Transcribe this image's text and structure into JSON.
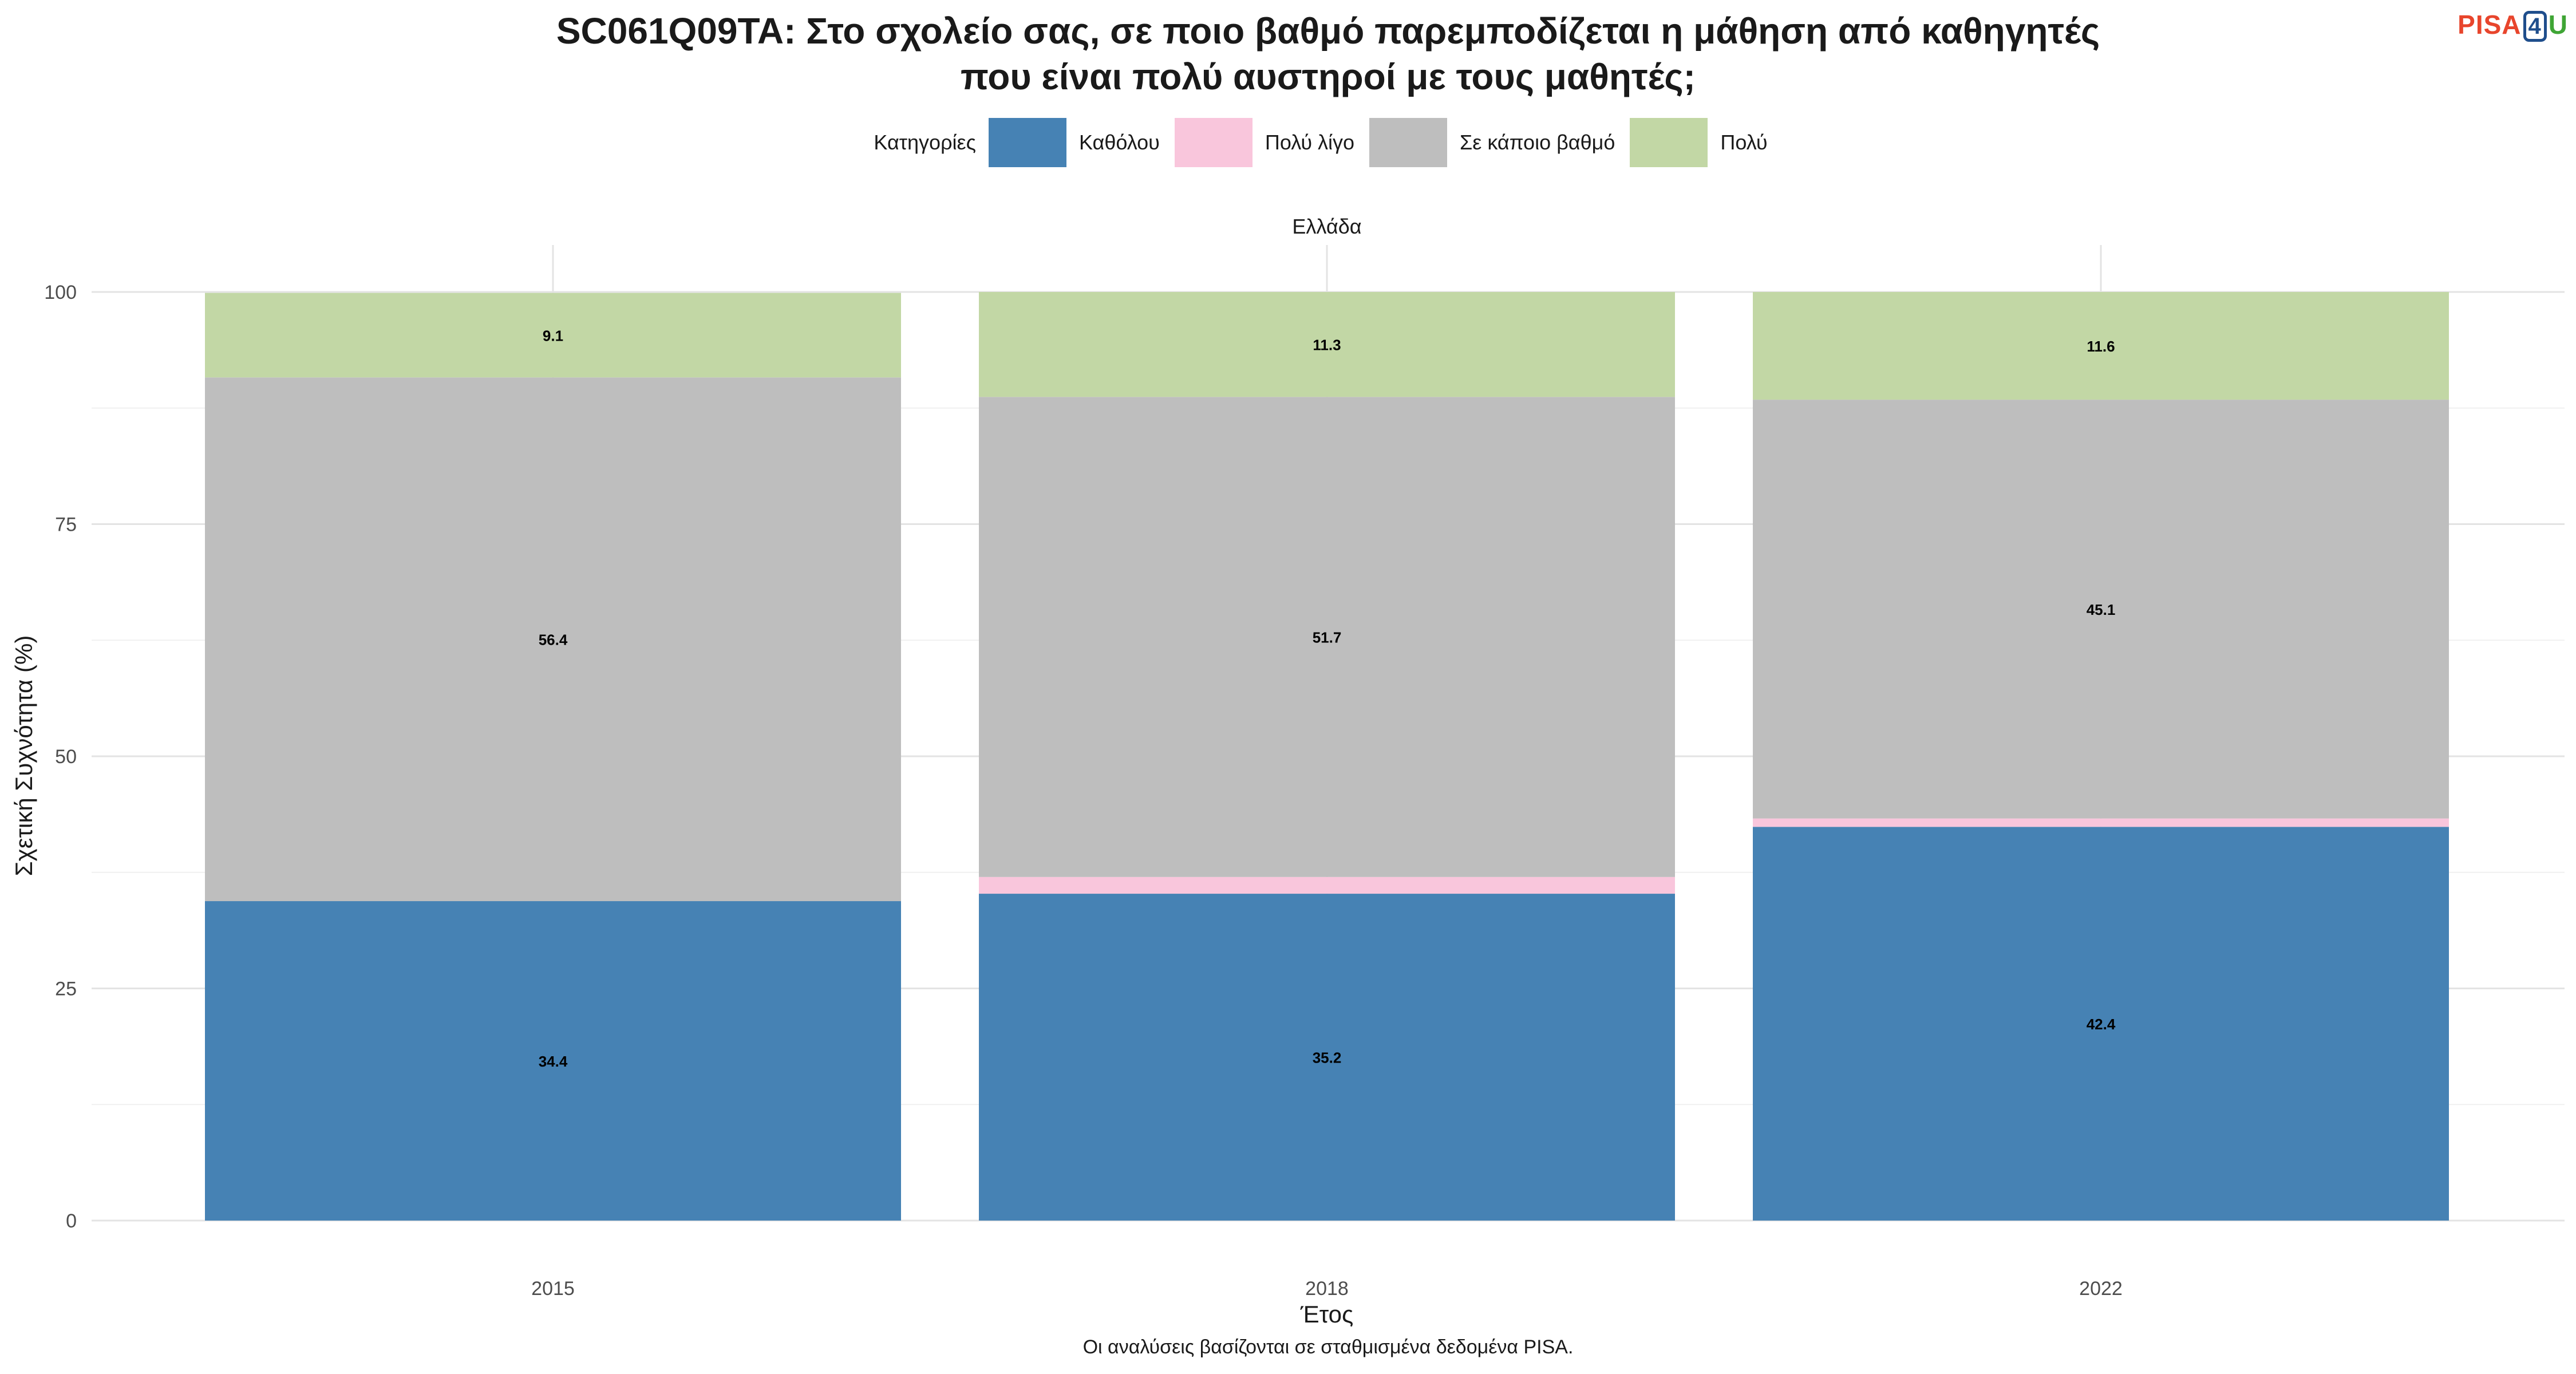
{
  "title_lines": [
    "SC061Q09TA: Στο σχολείο σας, σε ποιο βαθμό παρεμποδίζεται η μάθηση από καθηγητές",
    "που είναι πολύ αυστηροί με τους μαθητές;"
  ],
  "logo": {
    "pisa": "PISA",
    "four": "4",
    "u": "U"
  },
  "legend_title": "Κατηγορίες",
  "caption": "Οι αναλύσεις βασίζονται σε σταθμισμένα δεδομένα PISA.",
  "chart_data": {
    "type": "bar",
    "stacked": true,
    "facet": "Ελλάδα",
    "categories": [
      "2015",
      "2018",
      "2022"
    ],
    "xlabel": "Έτος",
    "ylabel": "Σχετική Συχνότητα (%)",
    "ylim": [
      0,
      100
    ],
    "yticks": [
      0,
      25,
      50,
      75,
      100
    ],
    "grid": true,
    "legend_position": "top",
    "series": [
      {
        "name": "Καθόλου",
        "color": "#4682b4",
        "values": [
          34.4,
          35.2,
          42.4
        ],
        "labels": [
          "34.4",
          "35.2",
          "42.4"
        ]
      },
      {
        "name": "Πολύ λίγο",
        "color": "#f9c6dc",
        "values": [
          0,
          1.8,
          0.9
        ],
        "labels": [
          "",
          "",
          ""
        ]
      },
      {
        "name": "Σε κάποιο βαθμό",
        "color": "#bebebe",
        "values": [
          56.4,
          51.7,
          45.1
        ],
        "labels": [
          "56.4",
          "51.7",
          "45.1"
        ]
      },
      {
        "name": "Πολύ",
        "color": "#c2d7a5",
        "values": [
          9.1,
          11.3,
          11.6
        ],
        "labels": [
          "9.1",
          "11.3",
          "11.6"
        ]
      }
    ]
  }
}
